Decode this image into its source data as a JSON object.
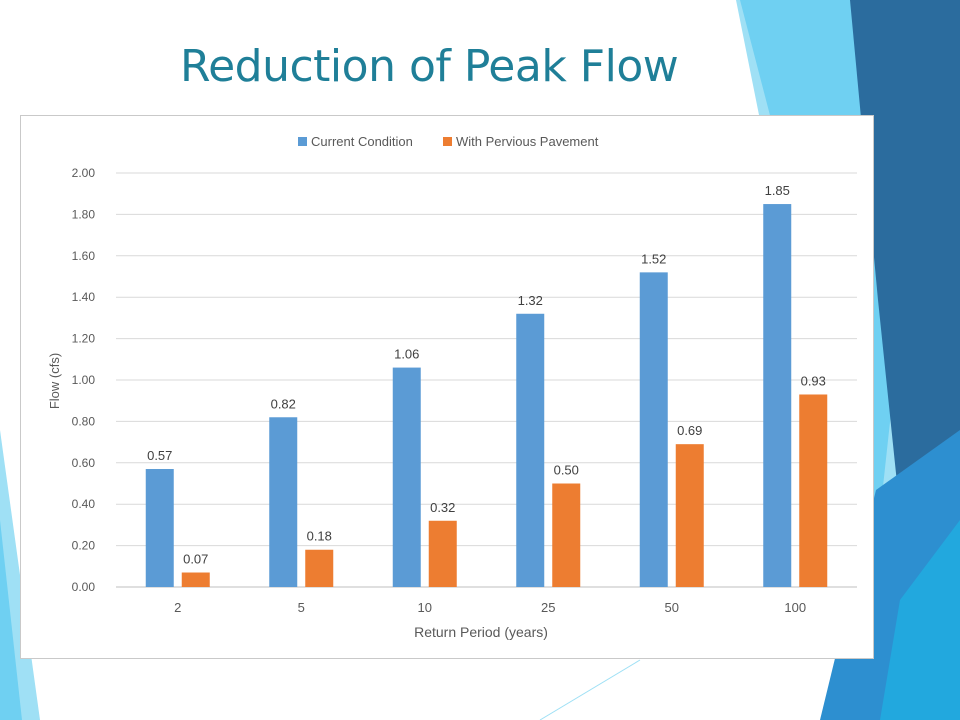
{
  "slide": {
    "title": "Reduction of Peak Flow"
  },
  "colors": {
    "title": "#1f7f98",
    "current_condition": "#5b9bd5",
    "with_pervious_pavement": "#ed7d31",
    "decor_dark": "#2b6c9e",
    "decor_mid": "#2d8fd0",
    "decor_light": "#6fd0f2",
    "decor_pale": "#9fe0f5"
  },
  "chart_data": {
    "type": "bar",
    "title": "",
    "xlabel": "Return Period (years)",
    "ylabel": "Flow (cfs)",
    "categories": [
      "2",
      "5",
      "10",
      "25",
      "50",
      "100"
    ],
    "series": [
      {
        "name": "Current Condition",
        "values": [
          0.57,
          0.82,
          1.06,
          1.32,
          1.52,
          1.85
        ],
        "labels": [
          "0.57",
          "0.82",
          "1.06",
          "1.32",
          "1.52",
          "1.85"
        ]
      },
      {
        "name": "With Pervious Pavement",
        "values": [
          0.07,
          0.18,
          0.32,
          0.5,
          0.69,
          0.93
        ],
        "labels": [
          "0.07",
          "0.18",
          "0.32",
          "0.50",
          "0.69",
          "0.93"
        ]
      }
    ],
    "ylim": [
      0,
      2
    ],
    "yticks": [
      "0.00",
      "0.20",
      "0.40",
      "0.60",
      "0.80",
      "1.00",
      "1.20",
      "1.40",
      "1.60",
      "1.80",
      "2.00"
    ],
    "grid": true,
    "legend_position": "top"
  }
}
